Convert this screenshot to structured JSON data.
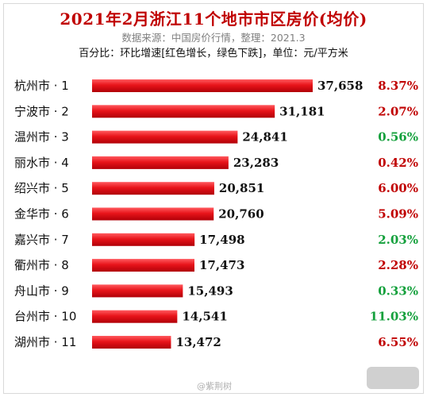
{
  "header": {
    "title": "2021年2月浙江11个地市市区房价(均价)",
    "source": "数据来源：中国房价行情，整理：2021.3",
    "note": "百分比：环比增速[红色增长，绿色下跌]，单位：元/平方米"
  },
  "colors": {
    "bar": "#e8141a",
    "title": "#c00000",
    "increase": "#c00000",
    "decrease": "#14a03c"
  },
  "chart_data": {
    "type": "bar",
    "orientation": "horizontal",
    "title": "2021年2月浙江11个地市市区房价(均价)",
    "categories": [
      "杭州市 · 1",
      "宁波市 · 2",
      "温州市 · 3",
      "丽水市 · 4",
      "绍兴市 · 5",
      "金华市 · 6",
      "嘉兴市 · 7",
      "衢州市 · 8",
      "舟山市 · 9",
      "台州市 · 10",
      "湖州市 · 11"
    ],
    "values": [
      37658,
      31181,
      24841,
      23283,
      20851,
      20760,
      17498,
      17473,
      15493,
      14541,
      13472
    ],
    "value_labels": [
      "37,658",
      "31,181",
      "24,841",
      "23,283",
      "20,851",
      "20,760",
      "17,498",
      "17,473",
      "15,493",
      "14,541",
      "13,472"
    ],
    "changes": [
      "8.37%",
      "2.07%",
      "0.56%",
      "0.42%",
      "6.00%",
      "5.09%",
      "2.03%",
      "2.28%",
      "0.33%",
      "11.03%",
      "6.55%"
    ],
    "change_direction": [
      "up",
      "up",
      "down",
      "up",
      "up",
      "up",
      "down",
      "up",
      "down",
      "down",
      "up"
    ],
    "xlim": [
      0,
      37658
    ],
    "grid": false,
    "legend": "none"
  },
  "watermark": {
    "text": "@紫荆树"
  }
}
